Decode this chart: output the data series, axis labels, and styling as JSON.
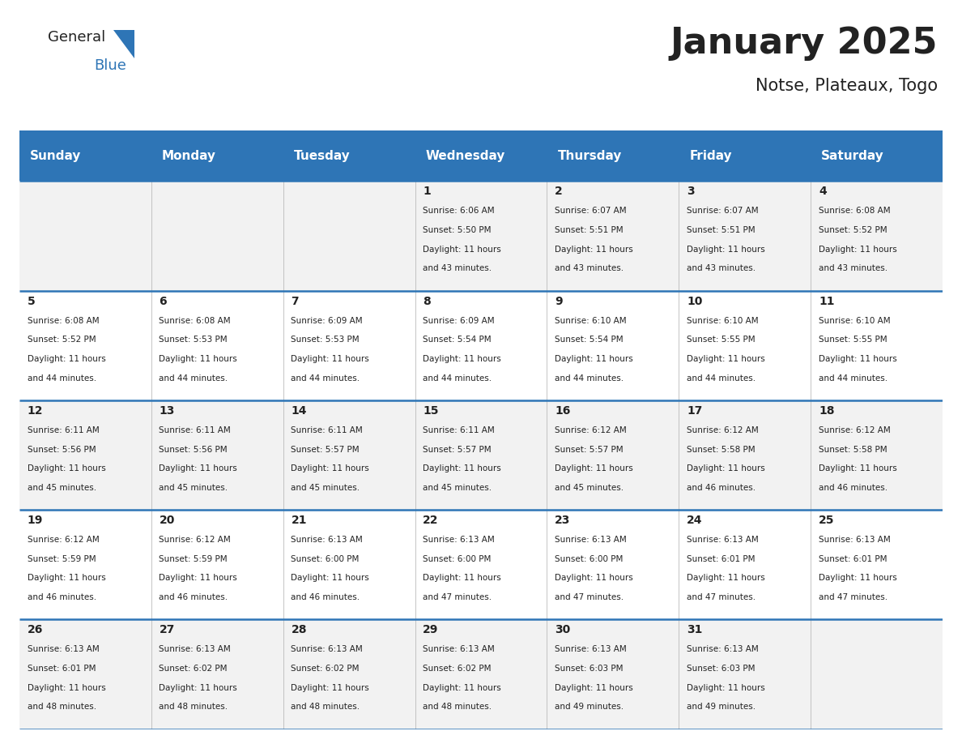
{
  "title": "January 2025",
  "subtitle": "Notse, Plateaux, Togo",
  "header_bg": "#2E75B6",
  "header_text_color": "#FFFFFF",
  "row_bg_odd": "#F2F2F2",
  "row_bg_even": "#FFFFFF",
  "cell_border_color": "#2E75B6",
  "day_headers": [
    "Sunday",
    "Monday",
    "Tuesday",
    "Wednesday",
    "Thursday",
    "Friday",
    "Saturday"
  ],
  "days": [
    {
      "day": 1,
      "col": 3,
      "row": 0,
      "sunrise": "6:06 AM",
      "sunset": "5:50 PM",
      "daylight_hours": 11,
      "daylight_minutes": 43
    },
    {
      "day": 2,
      "col": 4,
      "row": 0,
      "sunrise": "6:07 AM",
      "sunset": "5:51 PM",
      "daylight_hours": 11,
      "daylight_minutes": 43
    },
    {
      "day": 3,
      "col": 5,
      "row": 0,
      "sunrise": "6:07 AM",
      "sunset": "5:51 PM",
      "daylight_hours": 11,
      "daylight_minutes": 43
    },
    {
      "day": 4,
      "col": 6,
      "row": 0,
      "sunrise": "6:08 AM",
      "sunset": "5:52 PM",
      "daylight_hours": 11,
      "daylight_minutes": 43
    },
    {
      "day": 5,
      "col": 0,
      "row": 1,
      "sunrise": "6:08 AM",
      "sunset": "5:52 PM",
      "daylight_hours": 11,
      "daylight_minutes": 44
    },
    {
      "day": 6,
      "col": 1,
      "row": 1,
      "sunrise": "6:08 AM",
      "sunset": "5:53 PM",
      "daylight_hours": 11,
      "daylight_minutes": 44
    },
    {
      "day": 7,
      "col": 2,
      "row": 1,
      "sunrise": "6:09 AM",
      "sunset": "5:53 PM",
      "daylight_hours": 11,
      "daylight_minutes": 44
    },
    {
      "day": 8,
      "col": 3,
      "row": 1,
      "sunrise": "6:09 AM",
      "sunset": "5:54 PM",
      "daylight_hours": 11,
      "daylight_minutes": 44
    },
    {
      "day": 9,
      "col": 4,
      "row": 1,
      "sunrise": "6:10 AM",
      "sunset": "5:54 PM",
      "daylight_hours": 11,
      "daylight_minutes": 44
    },
    {
      "day": 10,
      "col": 5,
      "row": 1,
      "sunrise": "6:10 AM",
      "sunset": "5:55 PM",
      "daylight_hours": 11,
      "daylight_minutes": 44
    },
    {
      "day": 11,
      "col": 6,
      "row": 1,
      "sunrise": "6:10 AM",
      "sunset": "5:55 PM",
      "daylight_hours": 11,
      "daylight_minutes": 44
    },
    {
      "day": 12,
      "col": 0,
      "row": 2,
      "sunrise": "6:11 AM",
      "sunset": "5:56 PM",
      "daylight_hours": 11,
      "daylight_minutes": 45
    },
    {
      "day": 13,
      "col": 1,
      "row": 2,
      "sunrise": "6:11 AM",
      "sunset": "5:56 PM",
      "daylight_hours": 11,
      "daylight_minutes": 45
    },
    {
      "day": 14,
      "col": 2,
      "row": 2,
      "sunrise": "6:11 AM",
      "sunset": "5:57 PM",
      "daylight_hours": 11,
      "daylight_minutes": 45
    },
    {
      "day": 15,
      "col": 3,
      "row": 2,
      "sunrise": "6:11 AM",
      "sunset": "5:57 PM",
      "daylight_hours": 11,
      "daylight_minutes": 45
    },
    {
      "day": 16,
      "col": 4,
      "row": 2,
      "sunrise": "6:12 AM",
      "sunset": "5:57 PM",
      "daylight_hours": 11,
      "daylight_minutes": 45
    },
    {
      "day": 17,
      "col": 5,
      "row": 2,
      "sunrise": "6:12 AM",
      "sunset": "5:58 PM",
      "daylight_hours": 11,
      "daylight_minutes": 46
    },
    {
      "day": 18,
      "col": 6,
      "row": 2,
      "sunrise": "6:12 AM",
      "sunset": "5:58 PM",
      "daylight_hours": 11,
      "daylight_minutes": 46
    },
    {
      "day": 19,
      "col": 0,
      "row": 3,
      "sunrise": "6:12 AM",
      "sunset": "5:59 PM",
      "daylight_hours": 11,
      "daylight_minutes": 46
    },
    {
      "day": 20,
      "col": 1,
      "row": 3,
      "sunrise": "6:12 AM",
      "sunset": "5:59 PM",
      "daylight_hours": 11,
      "daylight_minutes": 46
    },
    {
      "day": 21,
      "col": 2,
      "row": 3,
      "sunrise": "6:13 AM",
      "sunset": "6:00 PM",
      "daylight_hours": 11,
      "daylight_minutes": 46
    },
    {
      "day": 22,
      "col": 3,
      "row": 3,
      "sunrise": "6:13 AM",
      "sunset": "6:00 PM",
      "daylight_hours": 11,
      "daylight_minutes": 47
    },
    {
      "day": 23,
      "col": 4,
      "row": 3,
      "sunrise": "6:13 AM",
      "sunset": "6:00 PM",
      "daylight_hours": 11,
      "daylight_minutes": 47
    },
    {
      "day": 24,
      "col": 5,
      "row": 3,
      "sunrise": "6:13 AM",
      "sunset": "6:01 PM",
      "daylight_hours": 11,
      "daylight_minutes": 47
    },
    {
      "day": 25,
      "col": 6,
      "row": 3,
      "sunrise": "6:13 AM",
      "sunset": "6:01 PM",
      "daylight_hours": 11,
      "daylight_minutes": 47
    },
    {
      "day": 26,
      "col": 0,
      "row": 4,
      "sunrise": "6:13 AM",
      "sunset": "6:01 PM",
      "daylight_hours": 11,
      "daylight_minutes": 48
    },
    {
      "day": 27,
      "col": 1,
      "row": 4,
      "sunrise": "6:13 AM",
      "sunset": "6:02 PM",
      "daylight_hours": 11,
      "daylight_minutes": 48
    },
    {
      "day": 28,
      "col": 2,
      "row": 4,
      "sunrise": "6:13 AM",
      "sunset": "6:02 PM",
      "daylight_hours": 11,
      "daylight_minutes": 48
    },
    {
      "day": 29,
      "col": 3,
      "row": 4,
      "sunrise": "6:13 AM",
      "sunset": "6:02 PM",
      "daylight_hours": 11,
      "daylight_minutes": 48
    },
    {
      "day": 30,
      "col": 4,
      "row": 4,
      "sunrise": "6:13 AM",
      "sunset": "6:03 PM",
      "daylight_hours": 11,
      "daylight_minutes": 49
    },
    {
      "day": 31,
      "col": 5,
      "row": 4,
      "sunrise": "6:13 AM",
      "sunset": "6:03 PM",
      "daylight_hours": 11,
      "daylight_minutes": 49
    }
  ],
  "logo_text1": "General",
  "logo_text2": "Blue",
  "logo_color1": "#222222",
  "logo_color2": "#2E75B6",
  "fig_width": 11.88,
  "fig_height": 9.18,
  "title_fontsize": 32,
  "subtitle_fontsize": 15,
  "header_fontsize": 11,
  "day_num_fontsize": 10,
  "cell_text_fontsize": 7.5
}
